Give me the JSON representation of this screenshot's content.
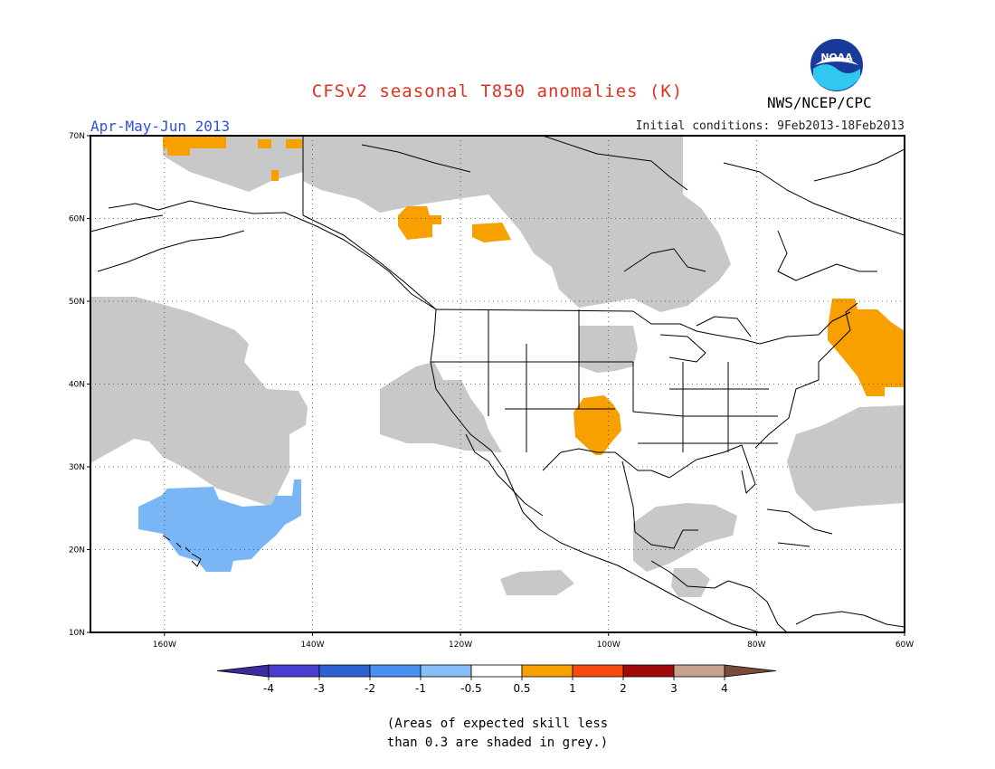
{
  "title": "CFSv2 seasonal T850 anomalies (K)",
  "period": "Apr-May-Jun 2013",
  "initial_conditions": "Initial conditions: 9Feb2013-18Feb2013",
  "organization": "NWS/NCEP/CPC",
  "logo_text": "NOAA",
  "note_line1": "(Areas of expected skill less",
  "note_line2": "than 0.3 are shaded in grey.)",
  "colors": {
    "title": "#e03020",
    "period": "#2c50e8",
    "skill_grey": "#c8c8c8",
    "positive": "#f8a000",
    "negative": "#7ab6f6",
    "coast": "#000000"
  },
  "map": {
    "lat_labels": [
      "70N",
      "60N",
      "50N",
      "40N",
      "30N",
      "20N",
      "10N"
    ],
    "lon_labels": [
      "160W",
      "140W",
      "120W",
      "100W",
      "80W",
      "60W"
    ],
    "extent": {
      "lon_min": -170,
      "lon_max": -60,
      "lat_min": 10,
      "lat_max": 70
    }
  },
  "colorbar": {
    "labels": [
      "-4",
      "-3",
      "-2",
      "-1",
      "-0.5",
      "0.5",
      "1",
      "2",
      "3",
      "4"
    ],
    "colors": [
      "#3a2c9c",
      "#4a3ed0",
      "#2e62d4",
      "#4a8ef2",
      "#86bef8",
      "#ffffff",
      "#f8a000",
      "#f84a10",
      "#a00a0a",
      "#c8a08e",
      "#7a4a3a"
    ]
  }
}
